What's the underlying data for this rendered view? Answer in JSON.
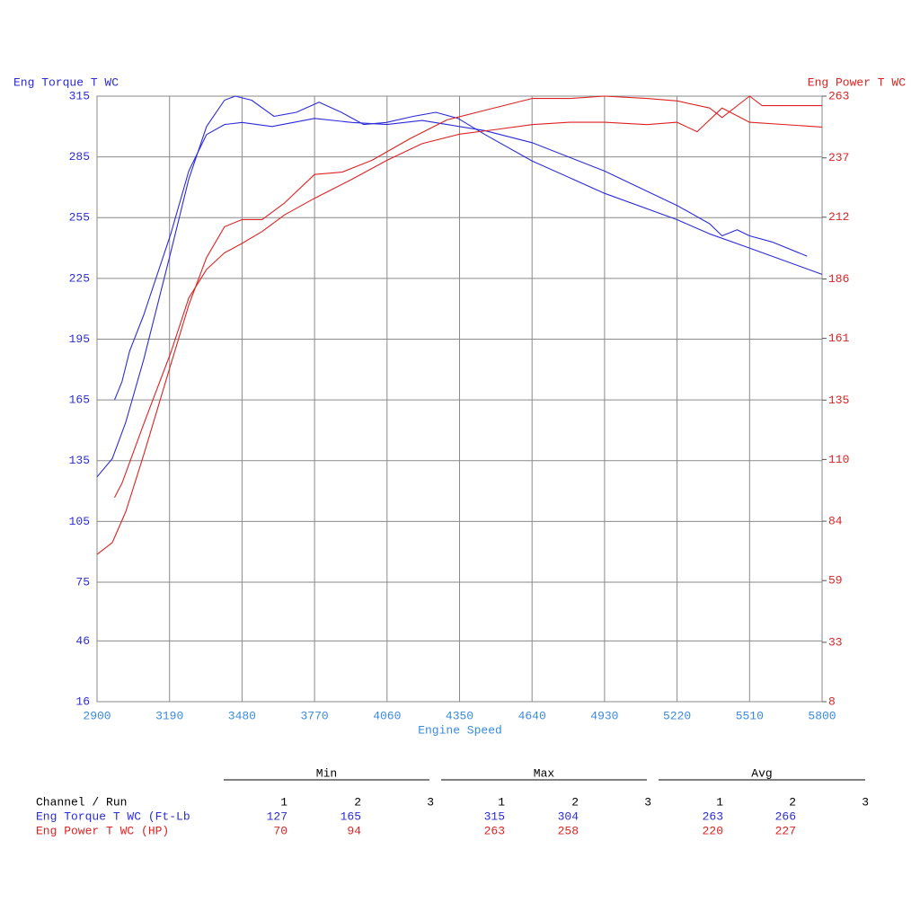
{
  "chart_data": {
    "type": "line",
    "ylabel": "Eng Torque T WC",
    "y2label": "Eng Power T WC",
    "xlabel": "Engine Speed",
    "xlim": [
      2900,
      5800
    ],
    "xticks": [
      2900,
      3190,
      3480,
      3770,
      4060,
      4350,
      4640,
      4930,
      5220,
      5510,
      5800
    ],
    "ylim": [
      16,
      315
    ],
    "yticks": [
      16,
      46,
      75,
      105,
      135,
      165,
      195,
      225,
      255,
      285,
      315
    ],
    "y2lim": [
      8,
      263
    ],
    "y2ticks": [
      8,
      33,
      59,
      84,
      110,
      135,
      161,
      186,
      212,
      237,
      263
    ],
    "grid": true,
    "series": [
      {
        "color": "#2b2bd9",
        "axis": "y",
        "x": [
          2900,
          2961,
          3015,
          3087,
          3195,
          3267,
          3338,
          3410,
          3453,
          3518,
          3608,
          3697,
          3788,
          3877,
          3967,
          4057,
          4165,
          4255,
          4344,
          4452,
          4640,
          4930,
          5220,
          5350,
          5510,
          5800
        ],
        "values": [
          127,
          136,
          154,
          185,
          238,
          274,
          300,
          313,
          315,
          313,
          305,
          307,
          312,
          307,
          301,
          302,
          305,
          307,
          304,
          296,
          283,
          267,
          254,
          247,
          240,
          227
        ]
      },
      {
        "color": "#2b2bd9",
        "axis": "y",
        "x": [
          2970,
          3000,
          3030,
          3087,
          3195,
          3267,
          3338,
          3410,
          3480,
          3600,
          3770,
          3920,
          4060,
          4200,
          4300,
          4450,
          4640,
          4930,
          5220,
          5350,
          5400,
          5460,
          5510,
          5600,
          5740
        ],
        "values": [
          165,
          174,
          189,
          207,
          247,
          278,
          296,
          301,
          302,
          300,
          304,
          302,
          301,
          303,
          301,
          298,
          292,
          278,
          261,
          252,
          246,
          249,
          246,
          243,
          236
        ]
      },
      {
        "color": "#dd2222",
        "axis": "y2",
        "x": [
          2900,
          2961,
          3015,
          3087,
          3195,
          3267,
          3338,
          3410,
          3480,
          3560,
          3650,
          3770,
          3880,
          4000,
          4150,
          4300,
          4450,
          4640,
          4790,
          4930,
          5100,
          5220,
          5350,
          5400,
          5510,
          5560,
          5800
        ],
        "values": [
          70,
          75,
          88,
          112,
          150,
          175,
          195,
          208,
          211,
          211,
          218,
          230,
          231,
          236,
          245,
          253,
          257,
          262,
          262,
          263,
          262,
          261,
          258,
          254,
          263,
          259,
          259
        ]
      },
      {
        "color": "#dd2222",
        "axis": "y2",
        "x": [
          2970,
          3000,
          3087,
          3195,
          3267,
          3338,
          3410,
          3480,
          3560,
          3650,
          3770,
          3920,
          4060,
          4200,
          4350,
          4500,
          4640,
          4790,
          4930,
          5100,
          5220,
          5300,
          5400,
          5510,
          5800
        ],
        "values": [
          94,
          100,
          125,
          155,
          178,
          190,
          197,
          201,
          206,
          213,
          220,
          228,
          236,
          243,
          247,
          249,
          251,
          252,
          252,
          251,
          252,
          248,
          258,
          252,
          250
        ]
      }
    ]
  },
  "stats_table": {
    "header": "Channel / Run",
    "groups": [
      "Min",
      "Max",
      "Avg"
    ],
    "runs": [
      1,
      2,
      3
    ],
    "rows": [
      {
        "label": "Eng Torque T WC (Ft-Lb",
        "color": "#2b2bd9",
        "min": [
          127,
          165
        ],
        "max": [
          315,
          304
        ],
        "avg": [
          263,
          266
        ]
      },
      {
        "label": "Eng Power T WC (HP)",
        "color": "#dd2222",
        "min": [
          70,
          94
        ],
        "max": [
          263,
          258
        ],
        "avg": [
          220,
          227
        ]
      }
    ]
  }
}
